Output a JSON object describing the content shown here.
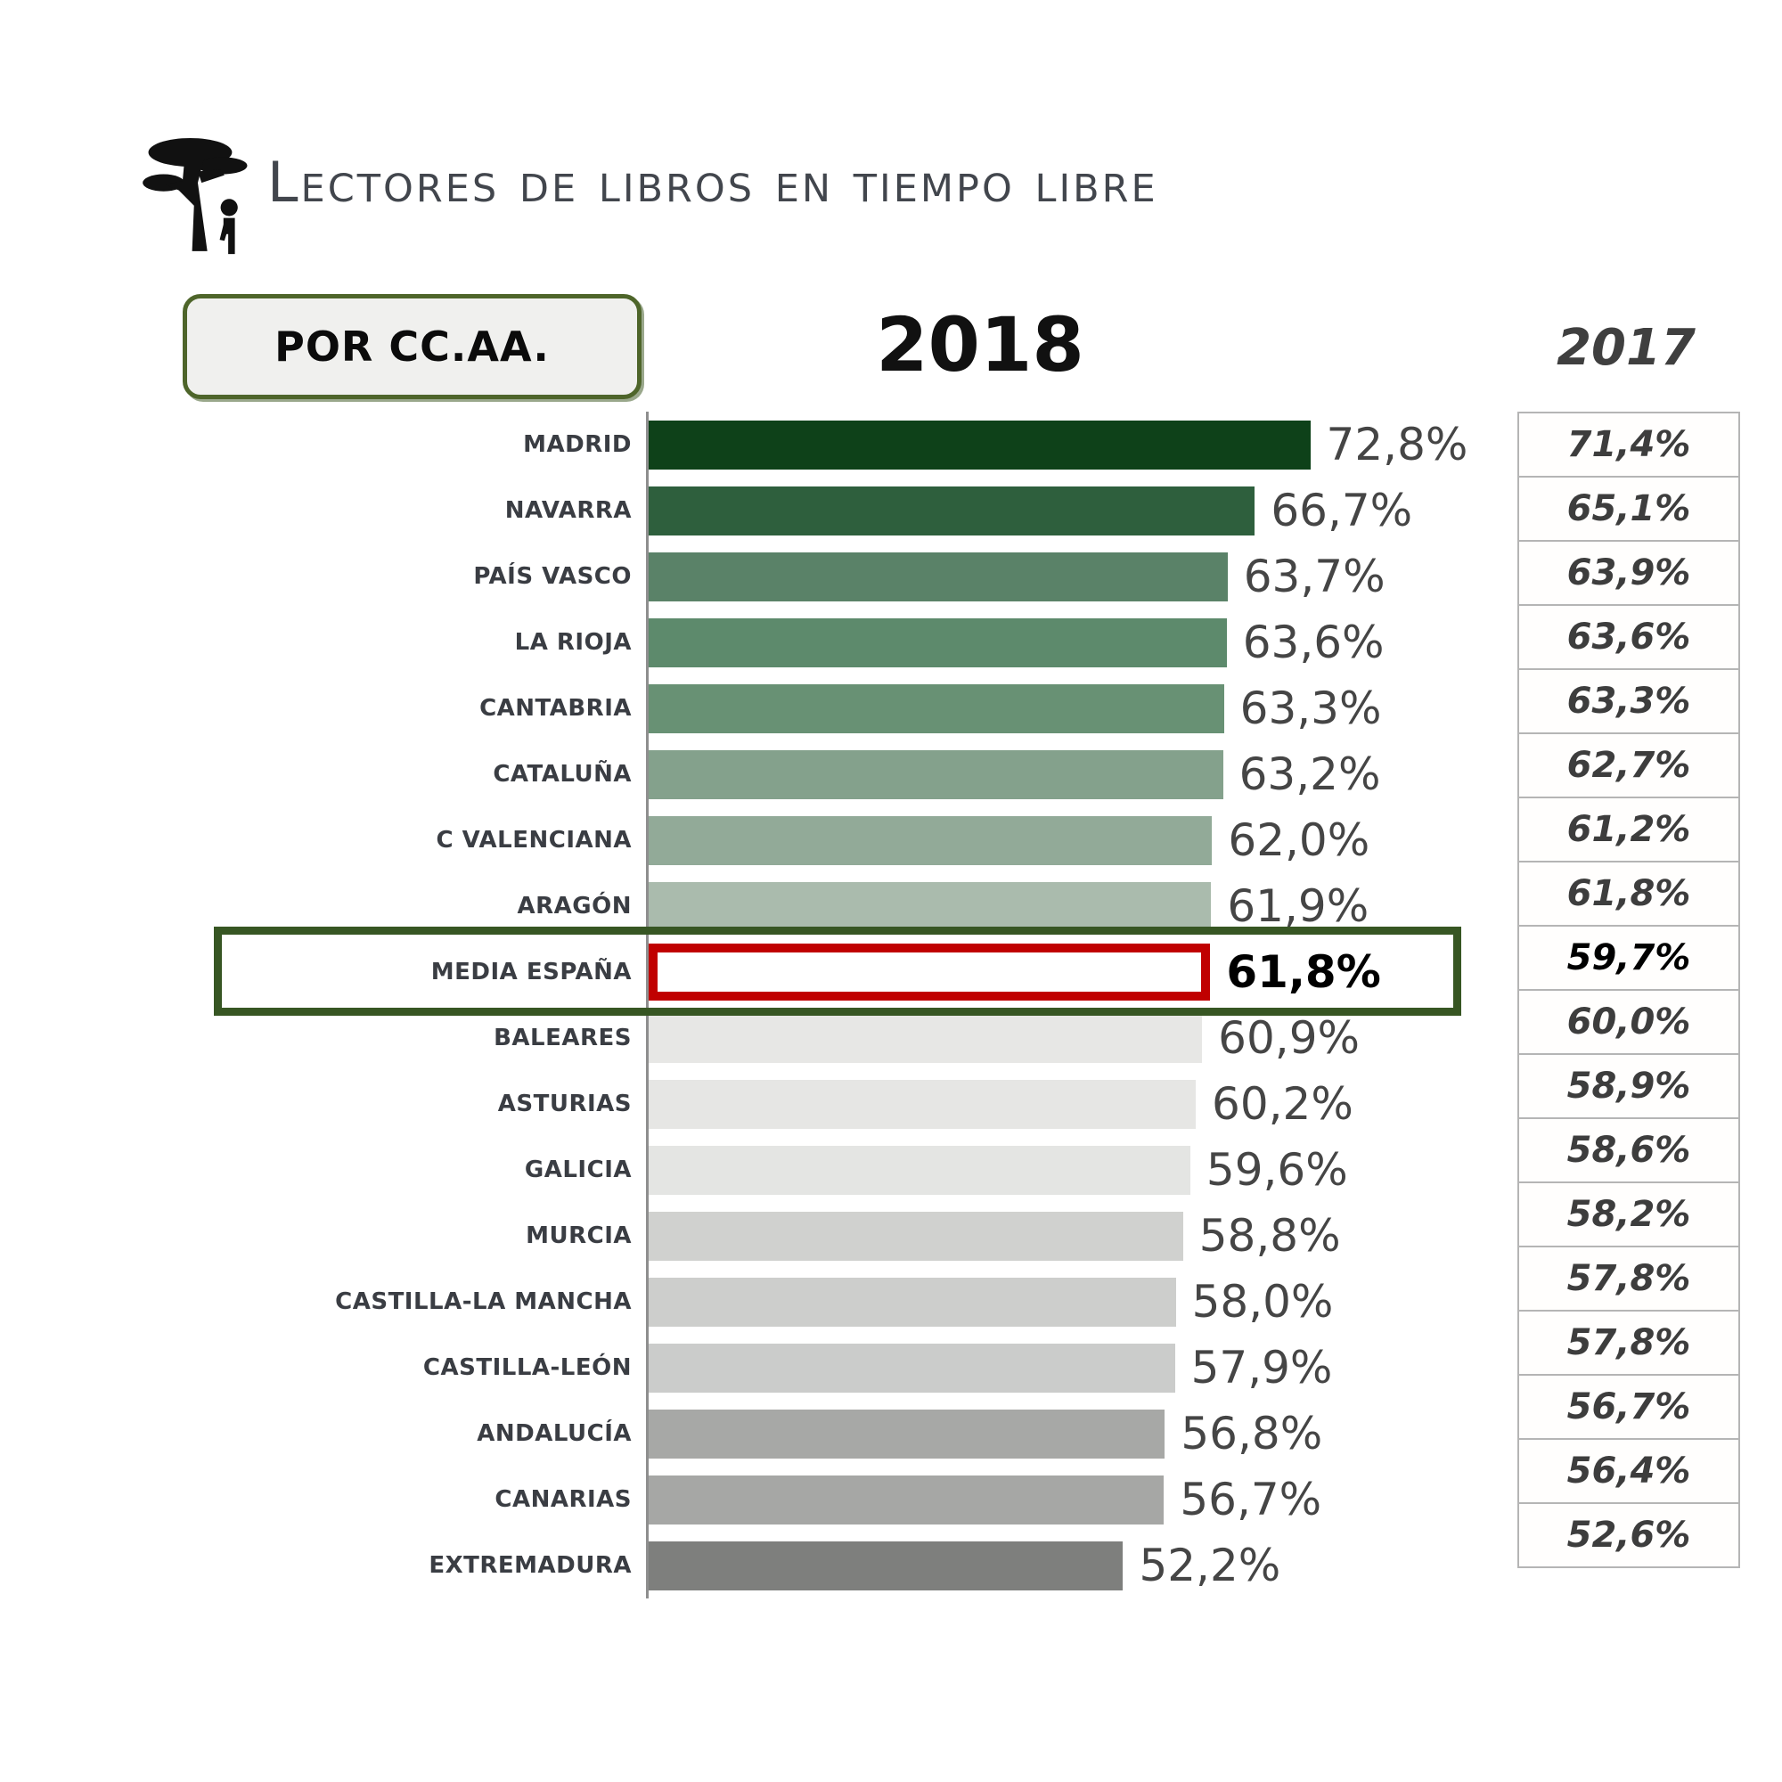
{
  "header": {
    "title": "Lectores de libros en tiempo libre",
    "group_label": "POR CC.AA.",
    "year_main": "2018",
    "year_secondary": "2017"
  },
  "icons": {
    "tree": "tree-with-person-icon"
  },
  "colors": {
    "title_text": "#42464d",
    "group_box_border": "#4e652a",
    "axis": "#8e8e8e",
    "highlight_bar_border": "#c00000",
    "highlight_box_border": "#375623",
    "table_cell_border": "#b5b5b5"
  },
  "chart_data": {
    "type": "bar",
    "orientation": "horizontal",
    "title": "Lectores de libros en tiempo libre",
    "group_label": "POR CC.AA.",
    "xlim": [
      0,
      75
    ],
    "grid": false,
    "legend_position": "column-headers",
    "categories": [
      "MADRID",
      "NAVARRA",
      "PAÍS VASCO",
      "LA RIOJA",
      "CANTABRIA",
      "CATALUÑA",
      "C VALENCIANA",
      "ARAGÓN",
      "MEDIA ESPAÑA",
      "BALEARES",
      "ASTURIAS",
      "GALICIA",
      "MURCIA",
      "CASTILLA-LA MANCHA",
      "CASTILLA-LEÓN",
      "ANDALUCÍA",
      "CANARIAS",
      "EXTREMADURA"
    ],
    "series": [
      {
        "name": "2018",
        "values": [
          72.8,
          66.7,
          63.7,
          63.6,
          63.3,
          63.2,
          62.0,
          61.9,
          61.8,
          60.9,
          60.2,
          59.6,
          58.8,
          58.0,
          57.9,
          56.8,
          56.7,
          52.2
        ]
      },
      {
        "name": "2017",
        "values": [
          71.4,
          65.1,
          63.9,
          63.6,
          63.3,
          62.7,
          61.2,
          61.8,
          59.7,
          60.0,
          58.9,
          58.6,
          58.2,
          57.8,
          57.8,
          56.7,
          56.4,
          52.6
        ]
      }
    ],
    "value_labels_2018": [
      "72,8%",
      "66,7%",
      "63,7%",
      "63,6%",
      "63,3%",
      "63,2%",
      "62,0%",
      "61,9%",
      "61,8%",
      "60,9%",
      "60,2%",
      "59,6%",
      "58,8%",
      "58,0%",
      "57,9%",
      "56,8%",
      "56,7%",
      "52,2%"
    ],
    "value_labels_2017": [
      "71,4%",
      "65,1%",
      "63,9%",
      "63,6%",
      "63,3%",
      "62,7%",
      "61,2%",
      "61,8%",
      "59,7%",
      "60,0%",
      "58,9%",
      "58,6%",
      "58,2%",
      "57,8%",
      "57,8%",
      "56,7%",
      "56,4%",
      "52,6%"
    ],
    "bar_colors": [
      "#0e4119",
      "#2e5f3d",
      "#5a8268",
      "#5d8a6c",
      "#689174",
      "#84a18c",
      "#92aa98",
      "#aabbad",
      "#ffffff",
      "#e7e7e5",
      "#e6e6e4",
      "#e4e5e3",
      "#d0d1cf",
      "#cdcecc",
      "#cbcccb",
      "#a7a8a6",
      "#a6a7a5",
      "#7e7f7d"
    ],
    "highlight": {
      "index": 8,
      "category": "MEDIA ESPAÑA",
      "bar_border_color": "#c00000",
      "box_border_color": "#375623"
    }
  }
}
